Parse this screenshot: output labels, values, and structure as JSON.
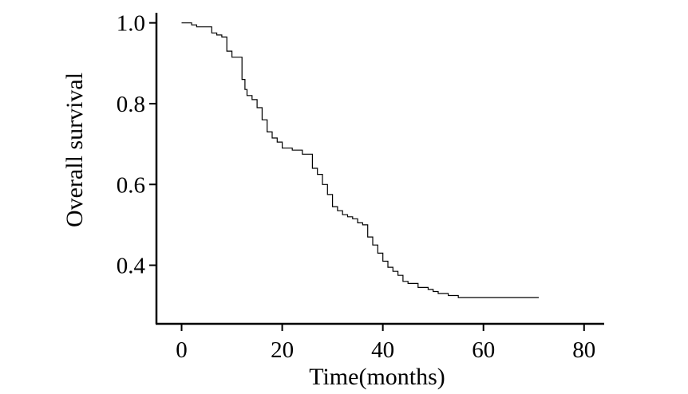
{
  "chart_data": {
    "type": "line",
    "title": "",
    "xlabel": "Time(months)",
    "ylabel": "Overall survival",
    "xlim": [
      -5,
      84
    ],
    "ylim": [
      0.255,
      1.025
    ],
    "grid": false,
    "x_ticks": [
      0,
      20,
      40,
      60,
      80
    ],
    "x_tick_labels": [
      "0",
      "20",
      "40",
      "60",
      "80"
    ],
    "y_ticks": [
      0.4,
      0.6,
      0.8,
      1.0
    ],
    "y_tick_labels": [
      "0.4",
      "0.6",
      "0.8",
      "1.0"
    ],
    "line_color": "#000000",
    "series": [
      {
        "name": "",
        "step": "post",
        "x": [
          0,
          2,
          3,
          6,
          7,
          8,
          9,
          10,
          12,
          12.6,
          13,
          14,
          15,
          16,
          17,
          18,
          19,
          20,
          22,
          24,
          26,
          27,
          28,
          29,
          30,
          31,
          32,
          33,
          34,
          35,
          36,
          37,
          38,
          39,
          40,
          41,
          42,
          43,
          44,
          45,
          47,
          49,
          50,
          51,
          53,
          55,
          71
        ],
        "y": [
          1.0,
          0.995,
          0.99,
          0.975,
          0.97,
          0.965,
          0.93,
          0.915,
          0.86,
          0.835,
          0.82,
          0.81,
          0.79,
          0.76,
          0.73,
          0.715,
          0.705,
          0.69,
          0.685,
          0.675,
          0.64,
          0.625,
          0.6,
          0.575,
          0.545,
          0.535,
          0.525,
          0.52,
          0.515,
          0.505,
          0.5,
          0.47,
          0.45,
          0.43,
          0.41,
          0.395,
          0.385,
          0.375,
          0.36,
          0.355,
          0.345,
          0.34,
          0.335,
          0.33,
          0.325,
          0.32,
          0.32
        ]
      }
    ]
  }
}
